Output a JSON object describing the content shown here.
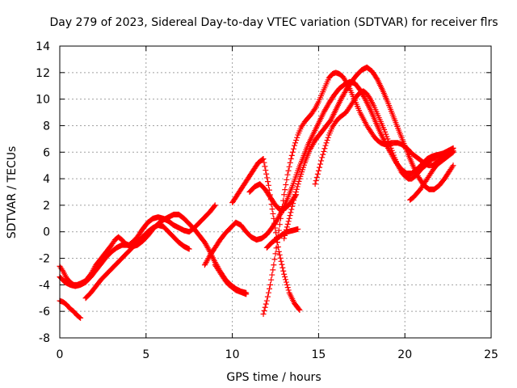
{
  "chart_data": {
    "type": "scatter",
    "title": "Day 279 of 2023, Sidereal Day-to-day VTEC variation (SDTVAR) for receiver flrs",
    "xlabel": "GPS time / hours",
    "ylabel": "SDTVAR / TECUs",
    "xlim": [
      0,
      25
    ],
    "ylim": [
      -8,
      14
    ],
    "xticks": [
      "0",
      "5",
      "10",
      "15",
      "20",
      "25"
    ],
    "yticks": [
      "-8",
      "-6",
      "-4",
      "-2",
      "0",
      "2",
      "4",
      "6",
      "8",
      "10",
      "12",
      "14"
    ],
    "grid": true,
    "marker": "plus",
    "color": "#ff0000",
    "series": [
      {
        "x": [
          0.0,
          0.2,
          0.4,
          0.6,
          0.8,
          1.0,
          1.2,
          1.5,
          1.8,
          2.1,
          2.4,
          2.7,
          3.0,
          3.2,
          3.4,
          3.6,
          3.8,
          4.0,
          4.2,
          4.5,
          4.8,
          5.1,
          5.4,
          5.7,
          6.0,
          6.3,
          6.6,
          6.9,
          7.2,
          7.5,
          7.8,
          8.1,
          8.4,
          8.7,
          9.0
        ],
        "y": [
          -2.6,
          -3.0,
          -3.5,
          -3.8,
          -4.0,
          -4.0,
          -3.9,
          -3.7,
          -3.2,
          -2.5,
          -2.0,
          -1.5,
          -1.0,
          -0.6,
          -0.4,
          -0.6,
          -0.9,
          -1.0,
          -0.8,
          -0.4,
          0.2,
          0.7,
          1.0,
          1.1,
          1.0,
          0.8,
          0.5,
          0.3,
          0.1,
          0.0,
          0.3,
          0.7,
          1.1,
          1.5,
          2.0
        ]
      },
      {
        "x": [
          0.0,
          0.3,
          0.6,
          0.9,
          1.2,
          1.5,
          1.8,
          2.1,
          2.4,
          2.7,
          3.0,
          3.3,
          3.6,
          3.9,
          4.2,
          4.5,
          4.8,
          5.1,
          5.4,
          5.7,
          6.0,
          6.3,
          6.6,
          6.9,
          7.2,
          7.5,
          7.8,
          8.1,
          8.4,
          8.7,
          9.0,
          9.3,
          9.6,
          9.9,
          10.2,
          10.5,
          10.8
        ],
        "y": [
          -3.4,
          -3.8,
          -4.0,
          -4.1,
          -4.0,
          -3.8,
          -3.4,
          -2.9,
          -2.4,
          -1.9,
          -1.5,
          -1.2,
          -1.0,
          -1.0,
          -1.1,
          -1.0,
          -0.7,
          -0.3,
          0.2,
          0.6,
          0.9,
          1.1,
          1.3,
          1.3,
          1.0,
          0.6,
          0.2,
          -0.3,
          -0.8,
          -1.5,
          -2.3,
          -3.0,
          -3.6,
          -4.0,
          -4.3,
          -4.5,
          -4.6
        ]
      },
      {
        "x": [
          0.0,
          0.2,
          0.4,
          0.6,
          0.8,
          1.0,
          1.2
        ],
        "y": [
          -5.2,
          -5.3,
          -5.5,
          -5.8,
          -6.0,
          -6.3,
          -6.5
        ]
      },
      {
        "x": [
          1.5,
          1.8,
          2.1,
          2.4,
          2.7,
          3.0,
          3.3,
          3.6,
          3.9,
          4.2,
          4.5,
          4.8,
          5.1,
          5.4,
          5.7,
          6.0,
          6.3,
          6.6,
          6.9,
          7.2,
          7.5
        ],
        "y": [
          -5.0,
          -4.6,
          -4.1,
          -3.6,
          -3.2,
          -2.8,
          -2.4,
          -2.0,
          -1.6,
          -1.2,
          -0.8,
          -0.4,
          0.0,
          0.3,
          0.5,
          0.4,
          0.0,
          -0.4,
          -0.8,
          -1.1,
          -1.3
        ]
      },
      {
        "x": [
          8.4,
          8.7,
          9.0,
          9.3,
          9.6,
          9.9,
          10.2,
          10.5,
          10.8,
          11.1,
          11.4,
          11.7,
          12.0,
          12.3,
          12.6,
          12.9,
          13.2,
          13.5,
          13.8,
          14.1,
          14.4,
          14.7,
          15.0,
          15.3,
          15.6,
          15.9,
          16.2,
          16.5,
          16.8,
          17.1,
          17.4,
          17.7,
          18.0,
          18.3,
          18.6,
          18.9,
          19.2,
          19.5,
          19.8,
          20.1,
          20.4,
          20.7,
          21.0,
          21.3,
          21.6,
          21.9,
          22.2,
          22.5,
          22.8
        ],
        "y": [
          -2.5,
          -1.8,
          -1.2,
          -0.6,
          -0.1,
          0.3,
          0.7,
          0.5,
          0.0,
          -0.4,
          -0.6,
          -0.5,
          -0.2,
          0.3,
          0.9,
          1.6,
          2.5,
          3.5,
          4.6,
          5.6,
          6.6,
          7.4,
          8.2,
          9.0,
          9.7,
          10.3,
          10.8,
          11.1,
          11.3,
          11.2,
          10.7,
          10.0,
          9.2,
          8.3,
          7.4,
          6.6,
          5.9,
          5.2,
          4.7,
          4.4,
          4.4,
          4.7,
          5.1,
          5.5,
          5.7,
          5.8,
          5.9,
          6.1,
          6.3
        ]
      },
      {
        "x": [
          9.0,
          9.2,
          9.4,
          9.6,
          9.8,
          10.0,
          10.2,
          10.4,
          10.6,
          10.8
        ],
        "y": [
          -2.5,
          -2.9,
          -3.3,
          -3.7,
          -4.0,
          -4.2,
          -4.4,
          -4.5,
          -4.6,
          -4.7
        ]
      },
      {
        "x": [
          10.0,
          10.3,
          10.6,
          10.9,
          11.2,
          11.5,
          11.8,
          12.1,
          12.4,
          12.7,
          13.0,
          13.3,
          13.6,
          13.9
        ],
        "y": [
          2.2,
          2.8,
          3.4,
          4.0,
          4.6,
          5.2,
          5.5,
          3.5,
          1.0,
          -1.5,
          -3.2,
          -4.6,
          -5.4,
          -5.9
        ]
      },
      {
        "x": [
          11.8,
          12.0,
          12.2,
          12.4,
          12.6,
          12.8,
          13.0,
          13.2,
          13.4,
          13.6,
          13.8,
          14.0,
          14.2,
          14.4,
          14.6,
          14.8,
          15.0,
          15.2,
          15.4,
          15.6,
          15.8,
          16.0,
          16.2,
          16.4,
          16.6,
          16.8,
          17.0,
          17.2,
          17.4,
          17.6,
          17.8,
          18.0,
          18.2,
          18.4,
          18.6,
          18.8,
          19.0,
          19.2,
          19.4,
          19.6,
          19.8,
          20.0,
          20.2,
          20.4,
          20.6,
          20.8,
          21.0,
          21.2,
          21.4,
          21.6,
          21.8,
          22.0,
          22.2,
          22.4,
          22.6,
          22.8
        ],
        "y": [
          -6.2,
          -5.2,
          -4.0,
          -2.5,
          -0.8,
          1.0,
          2.8,
          4.3,
          5.5,
          6.5,
          7.3,
          7.9,
          8.3,
          8.6,
          8.9,
          9.3,
          9.8,
          10.4,
          11.0,
          11.6,
          11.9,
          12.0,
          11.9,
          11.7,
          11.3,
          10.8,
          10.2,
          9.6,
          9.0,
          8.5,
          8.0,
          7.6,
          7.2,
          6.9,
          6.7,
          6.6,
          6.6,
          6.7,
          6.7,
          6.7,
          6.6,
          6.4,
          6.2,
          5.9,
          5.7,
          5.5,
          5.3,
          5.1,
          5.0,
          5.0,
          5.2,
          5.4,
          5.6,
          5.8,
          6.0,
          6.3
        ]
      },
      {
        "x": [
          13.0,
          13.3,
          13.6,
          13.9,
          14.2,
          14.5,
          14.8,
          15.1,
          15.4,
          15.7,
          16.0,
          16.3,
          16.6,
          16.9,
          17.2,
          17.5,
          17.8,
          18.1,
          18.4,
          18.7,
          19.0,
          19.3,
          19.6,
          19.9,
          20.2,
          20.5,
          20.8,
          21.1,
          21.4,
          21.7,
          22.0,
          22.3,
          22.6,
          22.8
        ],
        "y": [
          -0.5,
          1.0,
          2.6,
          4.0,
          5.2,
          6.2,
          6.9,
          7.4,
          7.9,
          8.4,
          9.2,
          10.0,
          10.7,
          11.3,
          11.8,
          12.2,
          12.4,
          12.1,
          11.5,
          10.7,
          9.8,
          8.8,
          7.8,
          6.8,
          5.8,
          4.9,
          4.1,
          3.5,
          3.2,
          3.2,
          3.5,
          4.0,
          4.6,
          5.0
        ]
      },
      {
        "x": [
          14.8,
          15.0,
          15.2,
          15.4,
          15.6,
          15.8,
          16.0,
          16.2,
          16.4,
          16.6,
          16.8,
          17.0,
          17.2,
          17.4,
          17.6,
          17.8,
          18.0,
          18.2,
          18.4,
          18.6,
          18.8,
          19.0,
          19.2,
          19.4,
          19.6,
          19.8,
          20.0,
          20.2,
          20.4,
          20.6,
          20.8,
          21.0,
          21.2,
          21.4,
          21.6,
          21.8,
          22.0,
          22.2,
          22.4,
          22.6,
          22.8
        ],
        "y": [
          3.6,
          4.6,
          5.6,
          6.5,
          7.3,
          7.9,
          8.3,
          8.6,
          8.8,
          9.0,
          9.4,
          9.8,
          10.2,
          10.5,
          10.6,
          10.4,
          10.0,
          9.5,
          8.9,
          8.3,
          7.7,
          7.0,
          6.3,
          5.6,
          5.0,
          4.5,
          4.2,
          4.0,
          4.0,
          4.2,
          4.5,
          4.8,
          5.0,
          5.3,
          5.5,
          5.6,
          5.7,
          5.8,
          5.9,
          6.0,
          6.1
        ]
      },
      {
        "x": [
          20.3,
          20.5,
          20.7,
          20.9,
          21.1,
          21.3,
          21.5,
          21.7,
          21.9,
          22.1,
          22.3,
          22.5,
          22.7,
          22.8
        ],
        "y": [
          2.4,
          2.6,
          2.9,
          3.2,
          3.6,
          4.0,
          4.4,
          4.8,
          5.1,
          5.3,
          5.5,
          5.7,
          5.9,
          6.0
        ]
      },
      {
        "x": [
          12.0,
          12.3,
          12.6,
          12.9,
          13.2,
          13.5,
          13.8
        ],
        "y": [
          -1.2,
          -0.8,
          -0.5,
          -0.2,
          0.0,
          0.1,
          0.2
        ]
      },
      {
        "x": [
          11.0,
          11.3,
          11.6,
          11.9,
          12.2,
          12.5,
          12.8,
          13.1,
          13.4,
          13.7
        ],
        "y": [
          3.0,
          3.4,
          3.6,
          3.2,
          2.6,
          2.0,
          1.6,
          1.8,
          2.2,
          2.8
        ]
      }
    ]
  }
}
